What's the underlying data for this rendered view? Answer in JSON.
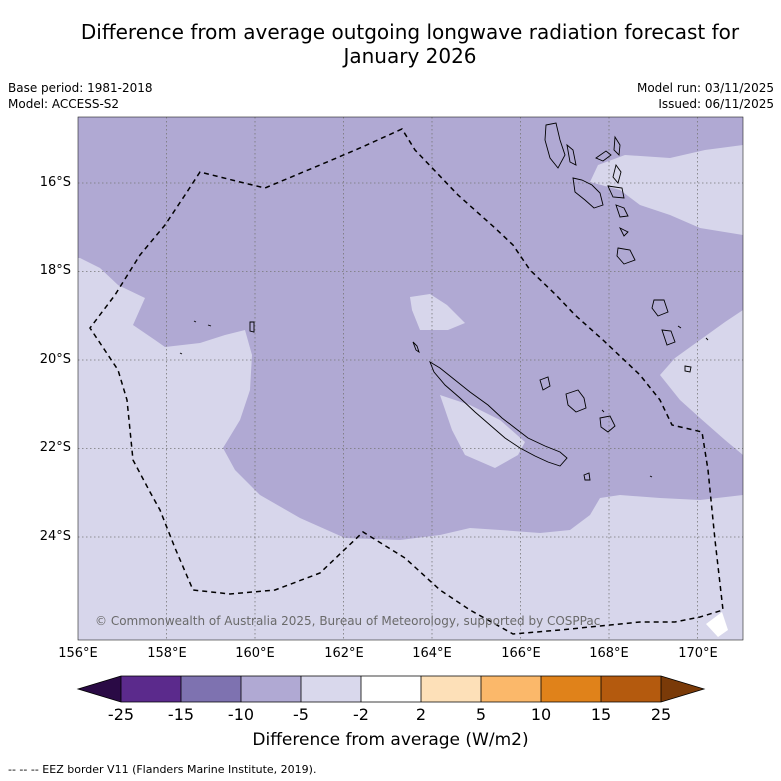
{
  "title_line1": "Difference from average outgoing longwave radiation forecast for",
  "title_line2": "January 2026",
  "meta_left": {
    "base_period": "Base period: 1981-2018",
    "model": "Model: ACCESS-S2"
  },
  "meta_right": {
    "model_run": "Model run: 03/11/2025",
    "issued": "Issued: 06/11/2025"
  },
  "lat_labels": [
    "16°S",
    "18°S",
    "20°S",
    "22°S",
    "24°S"
  ],
  "lon_labels": [
    "156°E",
    "158°E",
    "160°E",
    "162°E",
    "164°E",
    "166°E",
    "168°E",
    "170°E"
  ],
  "copyright": "© Commonwealth of Australia 2025, Bureau of Meteorology, supported by COSPPac",
  "colorbar": {
    "ticks": [
      "-25",
      "-15",
      "-10",
      "-5",
      "-2",
      "2",
      "5",
      "10",
      "15",
      "25"
    ],
    "colors": [
      "#2a0a45",
      "#5b2a8c",
      "#7e72b0",
      "#b0a9d3",
      "#d9d8ec",
      "#ffffff",
      "#fde0b8",
      "#fbb86a",
      "#e0821a",
      "#b45a0e",
      "#7a3a08"
    ],
    "title": "Difference from average (W/m2)"
  },
  "footnote": "--  --  -- EEZ border V11 (Flanders Marine Institute, 2019).",
  "map_colors": {
    "light": "#d7d6eb",
    "medium": "#b0a9d3",
    "coast": "#000000",
    "grid": "#777777",
    "eez": "#000000"
  }
}
